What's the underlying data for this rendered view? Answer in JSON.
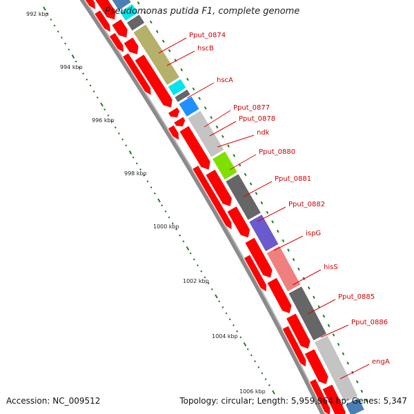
{
  "title": "Pseudomonas putida F1, complete genome",
  "footer": {
    "accession": "Accession: NC_009512",
    "summary": "Topology: circular; Length: 5,959,964 bp; Genes: 5,347"
  },
  "ruler": [
    "992 kbp",
    "994 kbp",
    "996 kbp",
    "998 kbp",
    "1000 kbp",
    "1002 kbp",
    "1004 kbp",
    "1006 kbp"
  ],
  "gene_labels": [
    "Pput_0874",
    "hscB",
    "hscA",
    "Pput_0877",
    "Pput_0878",
    "ndk",
    "Pput_0880",
    "Pput_0881",
    "Pput_0882",
    "ispG",
    "hisS",
    "Pput_0885",
    "Pput_0886",
    "engA"
  ],
  "colors": {
    "backbone": "#8a8a8a",
    "cds": "#ff0000",
    "label": "#cc0000",
    "tick": "#1f7a1f",
    "cog": [
      "#f0a020",
      "#4a7fb5",
      "#00e5ee",
      "#666666",
      "#b5b06a",
      "#00e5ee",
      "#666666",
      "#1e90ff",
      "#c4c4c4",
      "#7fe000",
      "#666666",
      "#6a5acd",
      "#f08080",
      "#666666",
      "#c4c4c4",
      "#4a7fb5"
    ]
  }
}
